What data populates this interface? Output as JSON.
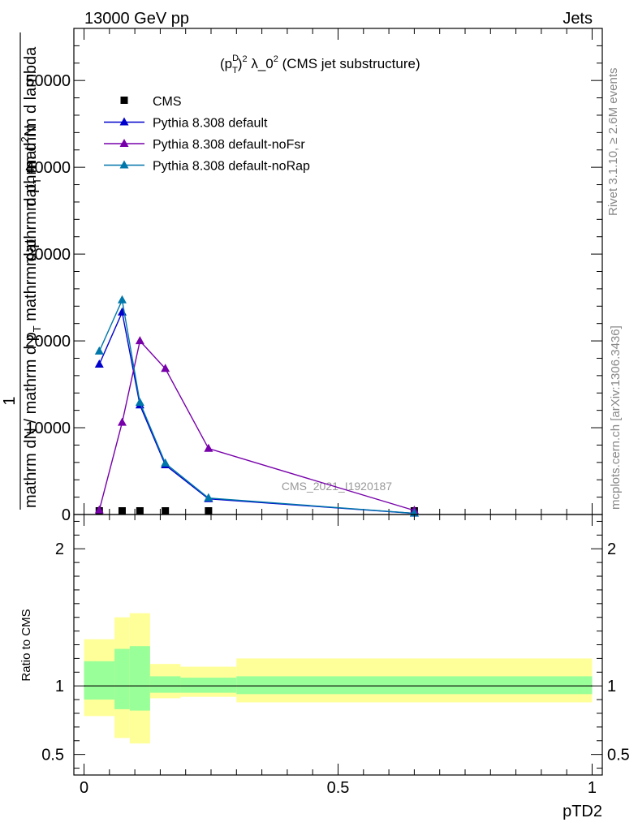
{
  "header": {
    "left": "13000 GeV pp",
    "right": "Jets"
  },
  "side": {
    "rivet": "Rivet 3.1.10, ≥ 2.6M events",
    "mcplots": "mcplots.cern.ch [arXiv:1306.3436]"
  },
  "colors": {
    "cms": "#000000",
    "default": "#0000cc",
    "noFsr": "#7700aa",
    "noRap": "#0077aa",
    "band_inner": "#99ff99",
    "band_outer": "#ffff99"
  },
  "chart_data": [
    {
      "type": "line",
      "title": "(p_T^D)^2 λ_0^2 (CMS jet substructure)",
      "title_parts": {
        "pre": "(p",
        "sup": "D",
        "sub": "T",
        "post": ")",
        "sup2": "2",
        "mid": " λ_0",
        "sup3": "2",
        "tail": " (CMS jet substructure)"
      },
      "watermark": "CMS_2021_I1920187",
      "ylabel_lines": [
        "1",
        "mathrm dN / mathrm d p_T mathrm d p_T mathrm d lambda",
        "mathrm d^2N"
      ],
      "ylabel_garbled": [
        {
          "text": "mathrm d",
          "sup": "2",
          "tail": "N"
        },
        {
          "text": "mathrm d p",
          "sub": "T",
          "tail": " mathrm d lambda"
        },
        {
          "text": "mathrm dN / mathrm d p",
          "sub": "T",
          "tail": " mathrm d p"
        }
      ],
      "ylabel_one": "1",
      "xlim": [
        -0.02,
        1.02
      ],
      "ylim": [
        0,
        56000
      ],
      "yticks": [
        0,
        10000,
        20000,
        30000,
        40000,
        50000
      ],
      "ytick_labels": [
        "0",
        "10000",
        "20000",
        "30000",
        "40000",
        "50000"
      ],
      "legend_placement": "top-left",
      "series": [
        {
          "name": "CMS",
          "key": "cms",
          "marker": "square",
          "line": false,
          "x": [
            0.03,
            0.075,
            0.11,
            0.16,
            0.245,
            0.65
          ],
          "y": [
            0,
            0,
            0,
            0,
            0,
            0
          ]
        },
        {
          "name": "Pythia 8.308 default",
          "key": "default",
          "marker": "triangle",
          "line": true,
          "x": [
            0.03,
            0.075,
            0.11,
            0.16,
            0.245,
            0.65
          ],
          "y": [
            17300,
            23300,
            12600,
            5700,
            1800,
            130
          ]
        },
        {
          "name": "Pythia 8.308 default-noFsr",
          "key": "noFsr",
          "marker": "triangle",
          "line": true,
          "x": [
            0.03,
            0.075,
            0.11,
            0.16,
            0.245,
            0.65
          ],
          "y": [
            500,
            10600,
            20000,
            16800,
            7600,
            470
          ]
        },
        {
          "name": "Pythia 8.308 default-noRap",
          "key": "noRap",
          "marker": "triangle",
          "line": true,
          "x": [
            0.03,
            0.075,
            0.11,
            0.16,
            0.245,
            0.65
          ],
          "y": [
            18800,
            24700,
            12900,
            5900,
            1900,
            140
          ]
        }
      ]
    },
    {
      "type": "area",
      "ylabel": "Ratio to CMS",
      "xlabel": "pTD2",
      "xlim": [
        -0.02,
        1.02
      ],
      "ylim": [
        0.35,
        2.25
      ],
      "xticks": [
        0,
        0.5,
        1
      ],
      "xtick_labels": [
        "0",
        "0.5",
        "1"
      ],
      "yticks": [
        0.5,
        1,
        2
      ],
      "ytick_labels": [
        "0.5",
        "1",
        "2"
      ],
      "reference": 1,
      "bins": [
        {
          "x0": 0.0,
          "x1": 0.06,
          "inner": [
            0.9,
            1.18
          ],
          "outer": [
            0.78,
            1.34
          ]
        },
        {
          "x0": 0.06,
          "x1": 0.09,
          "inner": [
            0.83,
            1.27
          ],
          "outer": [
            0.62,
            1.5
          ]
        },
        {
          "x0": 0.09,
          "x1": 0.13,
          "inner": [
            0.82,
            1.29
          ],
          "outer": [
            0.58,
            1.53
          ]
        },
        {
          "x0": 0.13,
          "x1": 0.19,
          "inner": [
            0.95,
            1.07
          ],
          "outer": [
            0.91,
            1.16
          ]
        },
        {
          "x0": 0.19,
          "x1": 0.3,
          "inner": [
            0.95,
            1.06
          ],
          "outer": [
            0.92,
            1.14
          ]
        },
        {
          "x0": 0.3,
          "x1": 1.0,
          "inner": [
            0.94,
            1.07
          ],
          "outer": [
            0.88,
            1.2
          ]
        }
      ]
    }
  ]
}
